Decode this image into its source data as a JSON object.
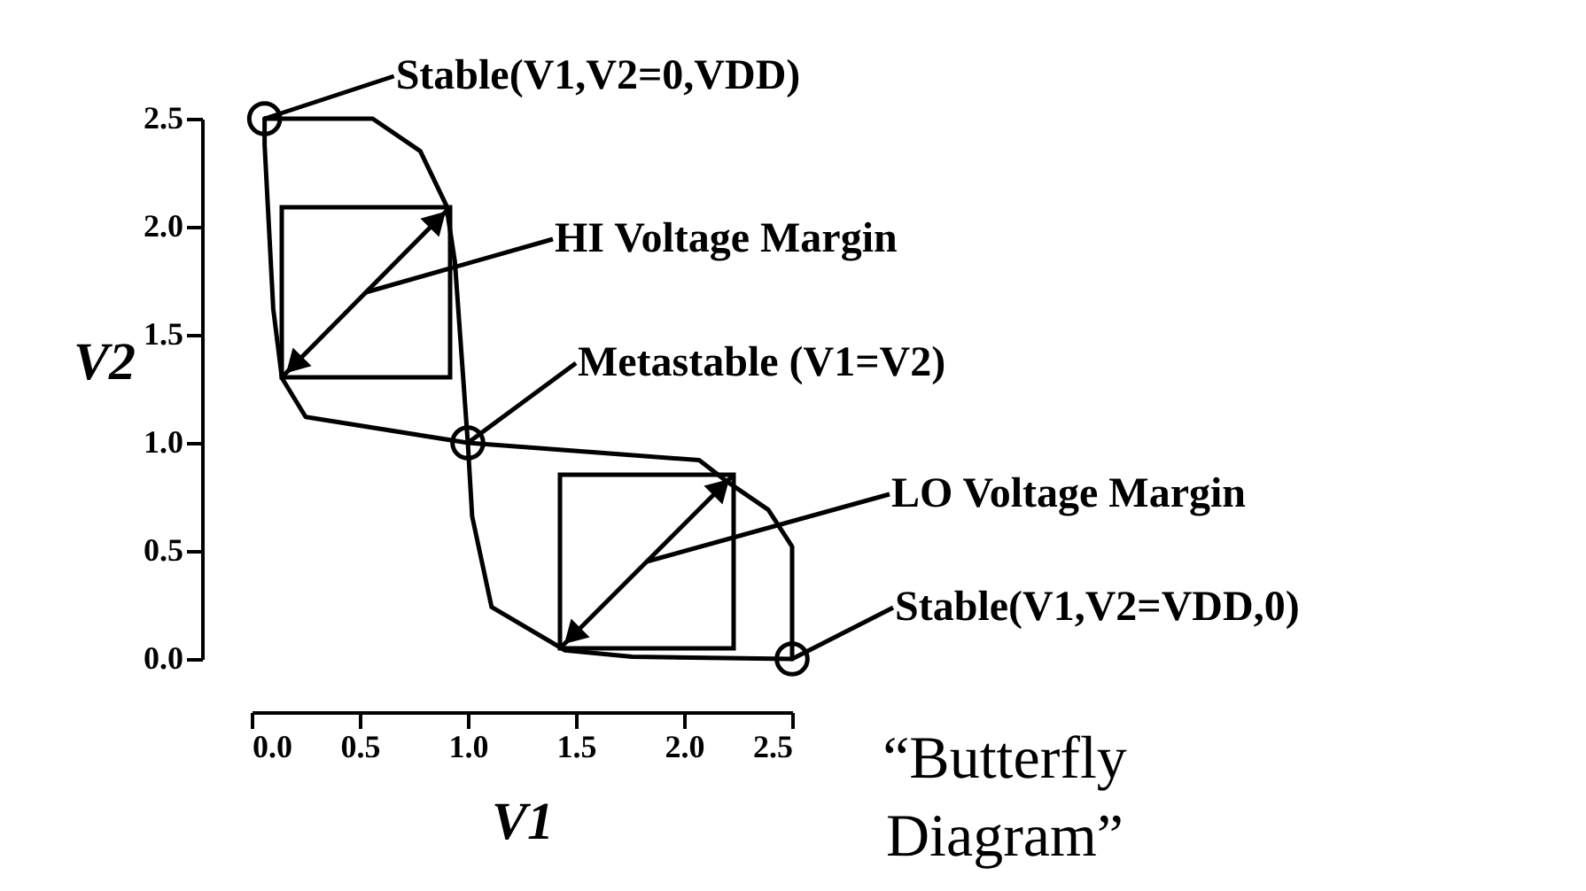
{
  "chart_data": {
    "type": "line",
    "xlabel": "V1",
    "ylabel": "V2",
    "xlim": [
      0,
      2.5
    ],
    "ylim": [
      0,
      2.5
    ],
    "xticks": [
      {
        "value": 0,
        "label": "0.0"
      },
      {
        "value": 0.5,
        "label": "0.5"
      },
      {
        "value": 1,
        "label": "1.0"
      },
      {
        "value": 1.5,
        "label": "1.5"
      },
      {
        "value": 2,
        "label": "2.0"
      },
      {
        "value": 2.5,
        "label": "2.5"
      }
    ],
    "yticks": [
      {
        "value": 0,
        "label": "0.0"
      },
      {
        "value": 0.5,
        "label": "0.5"
      },
      {
        "value": 1,
        "label": "1.0"
      },
      {
        "value": 1.5,
        "label": "1.5"
      },
      {
        "value": 2,
        "label": "2.0"
      },
      {
        "value": 2.5,
        "label": "2.5"
      }
    ],
    "grid": false,
    "marker": "none",
    "line_style": "solid",
    "series": [
      {
        "color": "#000000",
        "x": [
          0.06,
          0.56,
          0.78,
          0.9,
          0.94,
          1.0,
          1.02,
          1.11,
          1.45,
          1.76,
          2.5
        ],
        "values": [
          2.5,
          2.5,
          2.35,
          2.1,
          1.84,
          1.0,
          0.66,
          0.24,
          0.04,
          0.01,
          0.0
        ]
      },
      {
        "color": "#000000",
        "x": [
          0.06,
          0.06,
          0.1,
          0.14,
          0.25,
          1.0,
          2.07,
          2.2,
          2.39,
          2.5,
          2.5,
          2.5
        ],
        "values": [
          2.5,
          2.38,
          1.62,
          1.3,
          1.12,
          1.0,
          0.92,
          0.82,
          0.69,
          0.52,
          0.06,
          0.0
        ]
      },
      {
        "type": "scatter",
        "color": "#000000",
        "marker": "circle",
        "x": [
          0.06,
          1.0,
          2.5
        ],
        "values": [
          2.5,
          1.0,
          0.0
        ]
      }
    ],
    "annotations": [
      {
        "text": "Stable(V1,V2=0,VDD)",
        "x": 0.06,
        "y": 2.5
      },
      "HI Voltage Margin",
      {
        "text": "Metastable (V1=V2)",
        "x": 1.0,
        "y": 1.0
      },
      "LO Voltage Margin",
      {
        "text": "Stable(V1,V2=VDD,0)",
        "x": 2.5,
        "y": 0.0
      },
      "“Butterfly Diagram”"
    ]
  }
}
